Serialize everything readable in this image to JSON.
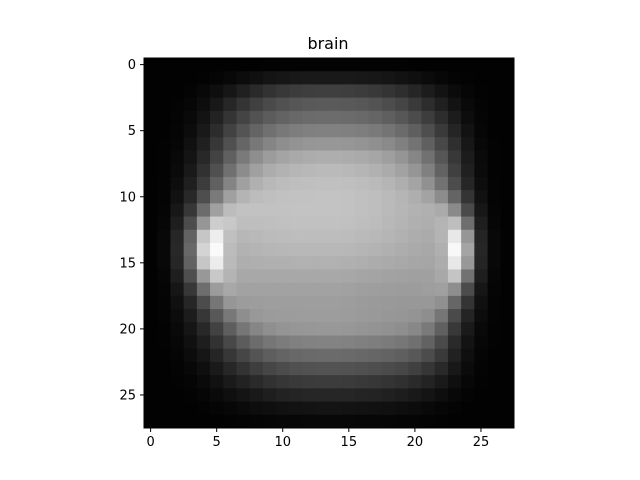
{
  "chart_data": {
    "type": "heatmap",
    "title": "brain",
    "colormap": "gray",
    "rows": 28,
    "cols": 28,
    "xlim": [
      -0.5,
      27.5
    ],
    "ylim": [
      27.5,
      -0.5
    ],
    "xticks": [
      0,
      5,
      10,
      15,
      20,
      25
    ],
    "yticks": [
      0,
      5,
      10,
      15,
      20,
      25
    ],
    "xtick_labels": [
      "0",
      "5",
      "10",
      "15",
      "20",
      "25"
    ],
    "ytick_labels": [
      "0",
      "5",
      "10",
      "15",
      "20",
      "25"
    ],
    "grid": false,
    "value_range": [
      0,
      255
    ],
    "values": [
      [
        2,
        2,
        2,
        2,
        2,
        2,
        2,
        2,
        2,
        3,
        3,
        3,
        3,
        3,
        3,
        3,
        3,
        3,
        3,
        3,
        2,
        2,
        2,
        2,
        2,
        2,
        2,
        2
      ],
      [
        2,
        2,
        2,
        2,
        3,
        5,
        8,
        12,
        16,
        20,
        22,
        24,
        25,
        25,
        25,
        25,
        24,
        23,
        21,
        18,
        15,
        11,
        7,
        4,
        3,
        2,
        2,
        2
      ],
      [
        2,
        2,
        2,
        4,
        8,
        14,
        22,
        32,
        42,
        50,
        56,
        60,
        62,
        63,
        63,
        62,
        60,
        57,
        52,
        46,
        38,
        28,
        19,
        11,
        6,
        3,
        2,
        2
      ],
      [
        2,
        2,
        3,
        6,
        13,
        24,
        38,
        52,
        64,
        74,
        81,
        86,
        89,
        90,
        90,
        89,
        87,
        83,
        77,
        69,
        58,
        45,
        32,
        19,
        9,
        4,
        2,
        2
      ],
      [
        2,
        2,
        4,
        9,
        19,
        34,
        52,
        68,
        82,
        92,
        99,
        104,
        107,
        108,
        108,
        107,
        105,
        101,
        95,
        87,
        76,
        61,
        45,
        28,
        13,
        5,
        2,
        2
      ],
      [
        2,
        2,
        5,
        12,
        25,
        44,
        66,
        84,
        100,
        112,
        120,
        125,
        128,
        129,
        129,
        128,
        126,
        122,
        116,
        107,
        95,
        78,
        58,
        37,
        18,
        6,
        2,
        2
      ],
      [
        2,
        3,
        6,
        16,
        32,
        55,
        80,
        102,
        120,
        133,
        142,
        147,
        150,
        151,
        151,
        150,
        148,
        144,
        138,
        128,
        115,
        96,
        72,
        47,
        23,
        8,
        3,
        2
      ],
      [
        2,
        3,
        8,
        20,
        40,
        67,
        96,
        122,
        142,
        156,
        164,
        169,
        172,
        174,
        174,
        172,
        170,
        166,
        159,
        149,
        134,
        113,
        86,
        56,
        28,
        10,
        3,
        2
      ],
      [
        2,
        3,
        10,
        25,
        49,
        80,
        112,
        140,
        160,
        172,
        178,
        182,
        184,
        186,
        186,
        184,
        181,
        177,
        171,
        162,
        149,
        128,
        98,
        64,
        32,
        11,
        3,
        2
      ],
      [
        2,
        4,
        13,
        31,
        60,
        96,
        132,
        160,
        176,
        184,
        188,
        190,
        191,
        192,
        192,
        191,
        189,
        186,
        181,
        174,
        164,
        145,
        114,
        76,
        38,
        13,
        4,
        2
      ],
      [
        2,
        4,
        17,
        40,
        78,
        122,
        160,
        180,
        188,
        191,
        193,
        194,
        194,
        195,
        195,
        194,
        192,
        190,
        186,
        181,
        174,
        163,
        140,
        100,
        52,
        17,
        4,
        2
      ],
      [
        2,
        5,
        23,
        55,
        108,
        160,
        188,
        194,
        194,
        194,
        194,
        195,
        195,
        195,
        195,
        194,
        192,
        190,
        186,
        182,
        178,
        176,
        170,
        138,
        74,
        23,
        5,
        2
      ],
      [
        2,
        6,
        30,
        76,
        150,
        205,
        200,
        190,
        190,
        191,
        192,
        193,
        193,
        193,
        193,
        192,
        190,
        188,
        184,
        180,
        176,
        174,
        180,
        190,
        110,
        30,
        6,
        2
      ],
      [
        2,
        8,
        38,
        98,
        198,
        238,
        192,
        183,
        185,
        187,
        188,
        189,
        189,
        189,
        189,
        188,
        186,
        184,
        181,
        177,
        173,
        171,
        180,
        232,
        150,
        36,
        8,
        2
      ],
      [
        2,
        8,
        40,
        104,
        212,
        250,
        188,
        178,
        180,
        182,
        183,
        184,
        184,
        184,
        184,
        183,
        181,
        179,
        176,
        173,
        170,
        168,
        176,
        248,
        164,
        38,
        8,
        2
      ],
      [
        2,
        8,
        38,
        98,
        198,
        236,
        186,
        174,
        175,
        176,
        176,
        177,
        177,
        177,
        177,
        176,
        174,
        172,
        170,
        168,
        166,
        165,
        172,
        232,
        152,
        36,
        8,
        2
      ],
      [
        2,
        6,
        30,
        78,
        152,
        200,
        180,
        168,
        168,
        168,
        168,
        168,
        168,
        168,
        168,
        167,
        165,
        164,
        162,
        161,
        160,
        160,
        168,
        196,
        114,
        30,
        6,
        2
      ],
      [
        2,
        5,
        22,
        55,
        110,
        156,
        168,
        162,
        162,
        162,
        162,
        162,
        162,
        162,
        162,
        161,
        159,
        158,
        157,
        156,
        156,
        158,
        160,
        142,
        76,
        22,
        5,
        2
      ],
      [
        2,
        4,
        16,
        38,
        76,
        118,
        150,
        156,
        157,
        158,
        158,
        158,
        158,
        158,
        158,
        157,
        155,
        154,
        153,
        152,
        152,
        152,
        144,
        102,
        52,
        16,
        4,
        2
      ],
      [
        2,
        4,
        12,
        28,
        55,
        88,
        120,
        142,
        152,
        155,
        156,
        156,
        157,
        157,
        157,
        156,
        154,
        153,
        151,
        150,
        148,
        142,
        118,
        74,
        36,
        12,
        4,
        2
      ],
      [
        2,
        3,
        9,
        21,
        40,
        66,
        94,
        118,
        134,
        143,
        148,
        150,
        151,
        152,
        152,
        151,
        149,
        147,
        145,
        142,
        136,
        122,
        96,
        56,
        26,
        9,
        3,
        2
      ],
      [
        2,
        3,
        7,
        16,
        30,
        50,
        72,
        92,
        108,
        118,
        124,
        128,
        130,
        131,
        131,
        130,
        128,
        126,
        123,
        119,
        112,
        98,
        74,
        42,
        19,
        7,
        3,
        2
      ],
      [
        2,
        2,
        5,
        12,
        22,
        37,
        55,
        70,
        84,
        94,
        100,
        104,
        106,
        107,
        107,
        106,
        104,
        102,
        99,
        95,
        88,
        76,
        58,
        33,
        15,
        5,
        2,
        2
      ],
      [
        2,
        2,
        4,
        8,
        15,
        26,
        39,
        51,
        62,
        70,
        76,
        80,
        82,
        83,
        83,
        82,
        80,
        78,
        75,
        71,
        64,
        54,
        41,
        24,
        11,
        4,
        2,
        2
      ],
      [
        2,
        2,
        3,
        5,
        10,
        17,
        26,
        34,
        42,
        49,
        54,
        57,
        59,
        60,
        60,
        59,
        57,
        55,
        52,
        48,
        42,
        35,
        26,
        15,
        7,
        3,
        2,
        2
      ],
      [
        2,
        2,
        2,
        3,
        6,
        10,
        15,
        20,
        25,
        30,
        34,
        36,
        38,
        38,
        38,
        38,
        36,
        35,
        32,
        29,
        25,
        20,
        14,
        8,
        4,
        2,
        2,
        2
      ],
      [
        2,
        2,
        2,
        2,
        3,
        5,
        7,
        10,
        13,
        15,
        17,
        18,
        19,
        20,
        20,
        19,
        18,
        17,
        16,
        14,
        12,
        9,
        6,
        4,
        2,
        2,
        2,
        2
      ],
      [
        2,
        2,
        2,
        2,
        2,
        2,
        3,
        4,
        5,
        6,
        7,
        7,
        8,
        8,
        8,
        8,
        7,
        7,
        6,
        5,
        5,
        4,
        3,
        2,
        2,
        2,
        2,
        2
      ]
    ]
  }
}
